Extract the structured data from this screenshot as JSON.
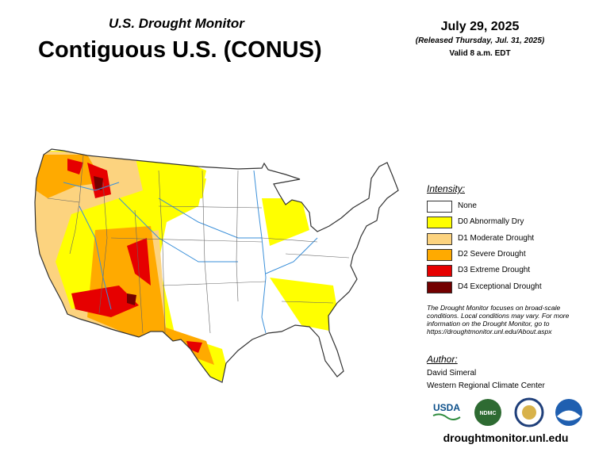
{
  "header": {
    "subtitle": "U.S. Drought Monitor",
    "title": "Contiguous U.S. (CONUS)",
    "date": "July 29, 2025",
    "released": "(Released Thursday, Jul. 31, 2025)",
    "valid": "Valid 8 a.m. EDT"
  },
  "legend": {
    "title": "Intensity:",
    "items": [
      {
        "label": "None",
        "color": "#ffffff"
      },
      {
        "label": "D0 Abnormally Dry",
        "color": "#ffff00"
      },
      {
        "label": "D1 Moderate Drought",
        "color": "#fcd37f"
      },
      {
        "label": "D2 Severe Drought",
        "color": "#ffaa00"
      },
      {
        "label": "D3 Extreme Drought",
        "color": "#e60000"
      },
      {
        "label": "D4 Exceptional Drought",
        "color": "#730000"
      }
    ]
  },
  "note": [
    "The Drought Monitor focuses on broad-scale",
    "conditions. Local conditions may vary. For more",
    "information on the Drought Monitor, go to",
    "https://droughtmonitor.unl.edu/About.aspx"
  ],
  "author": {
    "title": "Author:",
    "name": "David Simeral",
    "organization": "Western Regional Climate Center"
  },
  "logos": [
    "USDA",
    "NDMC"
  ],
  "footer": {
    "url": "droughtmonitor.unl.edu"
  }
}
